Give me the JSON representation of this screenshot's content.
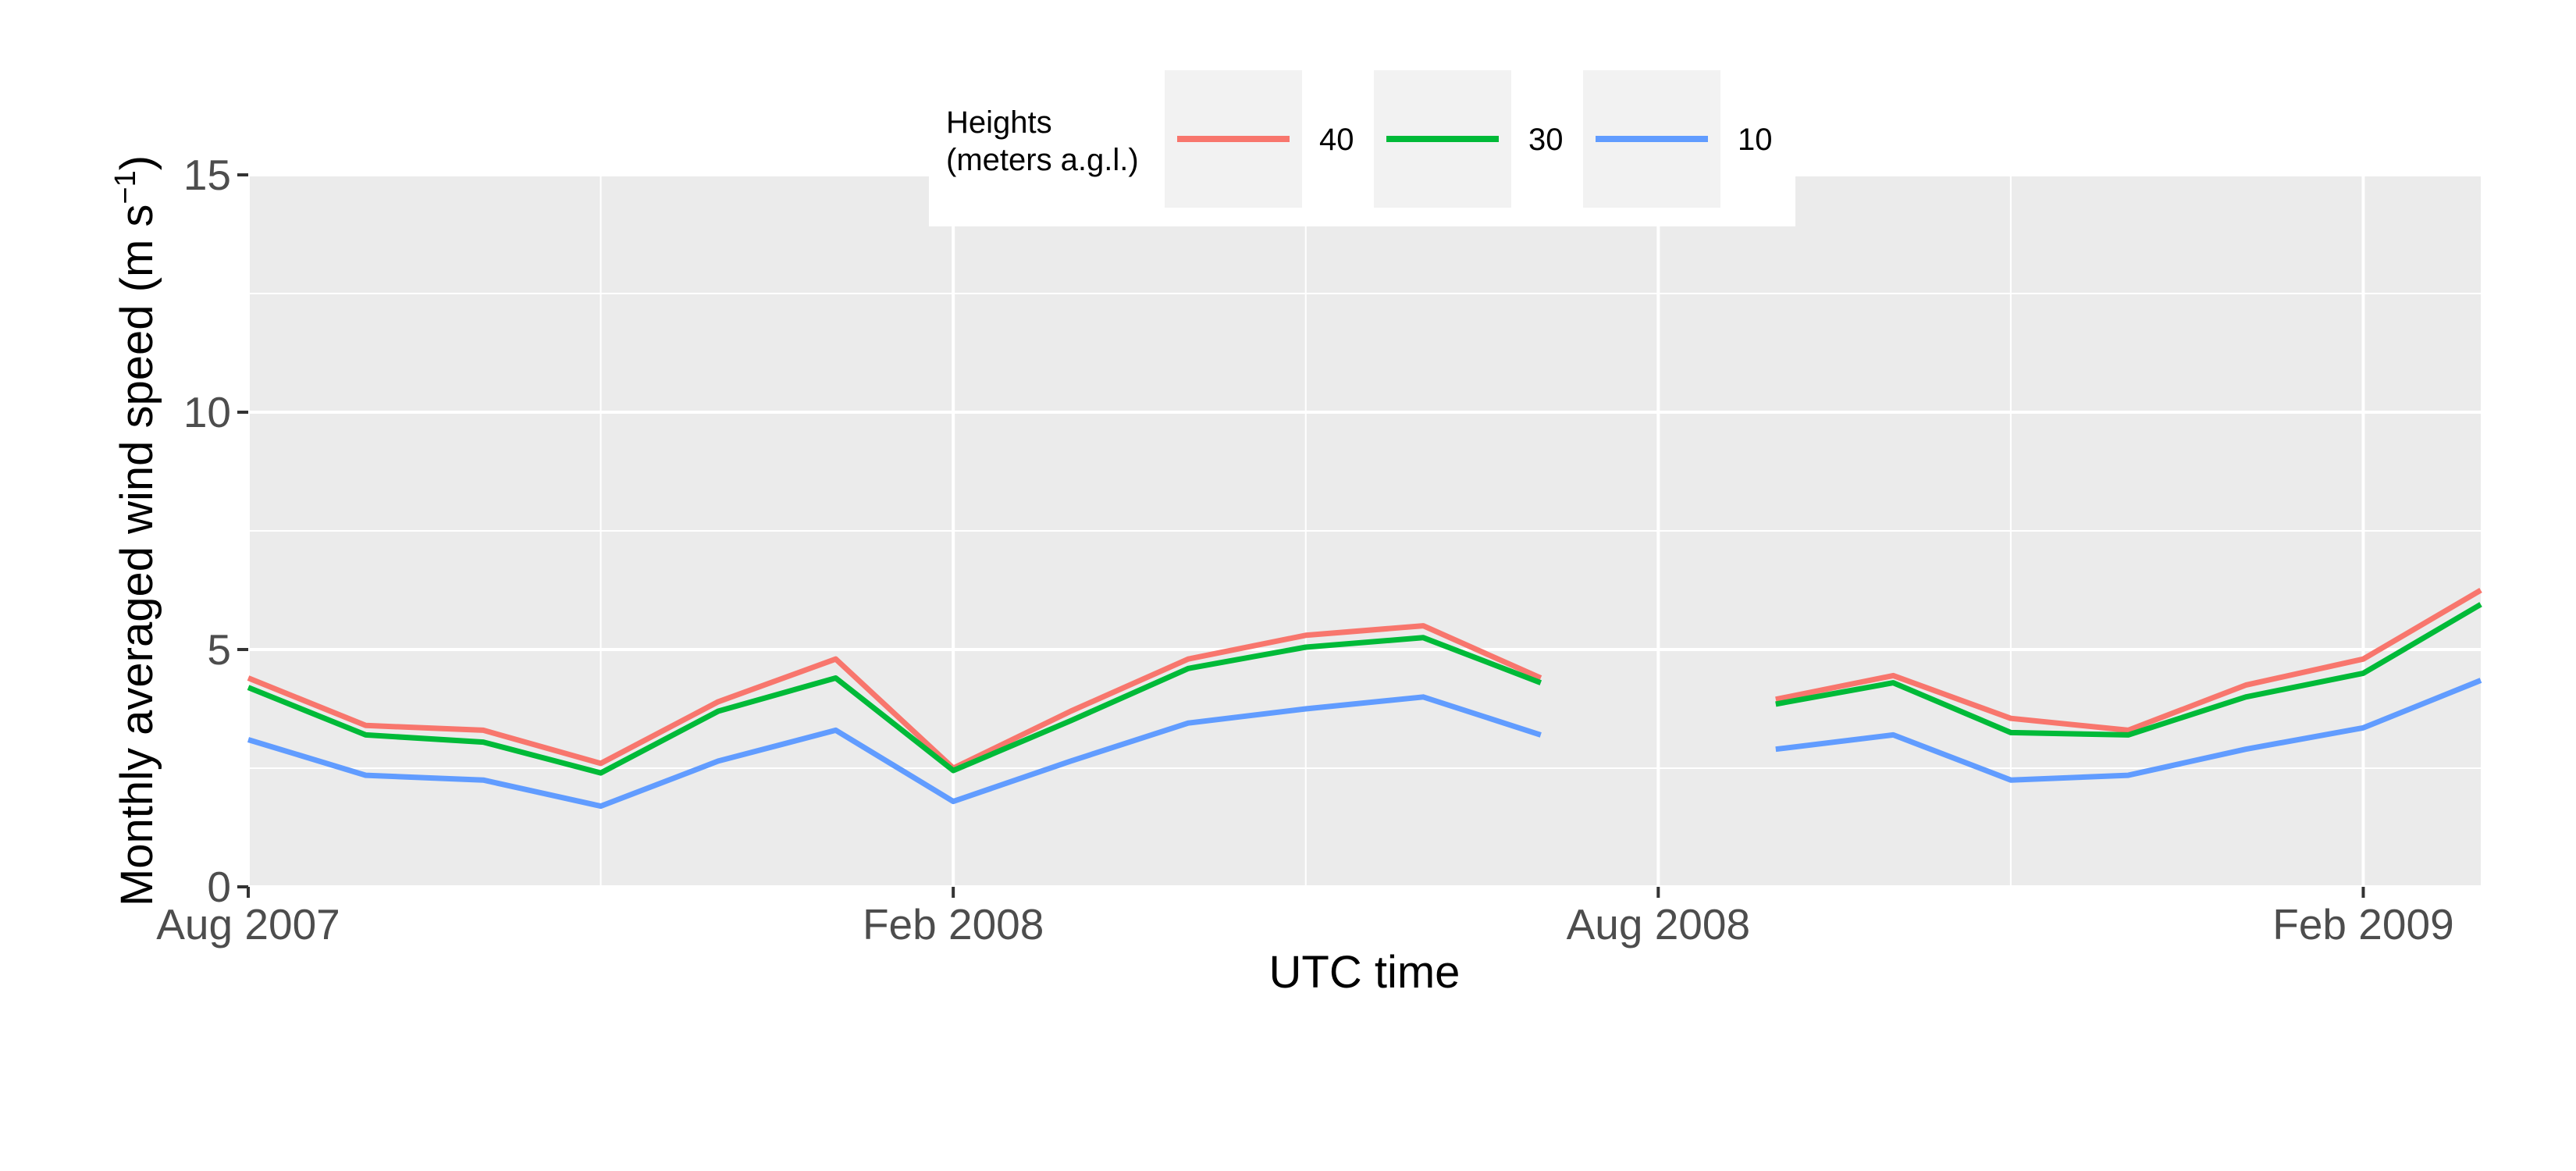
{
  "chart_data": {
    "type": "line",
    "xlabel": "UTC time",
    "ylabel_main": "Monthly averaged wind speed (m s",
    "ylabel_sup": "−1",
    "ylabel_close": ")",
    "ylim": [
      0,
      15
    ],
    "yticks": [
      0,
      5,
      10,
      15
    ],
    "xlim": [
      "2007-08",
      "2009-03"
    ],
    "xticks": [
      {
        "x": "2007-08",
        "label": "Aug 2007"
      },
      {
        "x": "2008-02",
        "label": "Feb 2008"
      },
      {
        "x": "2008-08",
        "label": "Aug 2008"
      },
      {
        "x": "2009-02",
        "label": "Feb 2009"
      }
    ],
    "x": [
      "2007-08",
      "2007-09",
      "2007-10",
      "2007-11",
      "2007-12",
      "2008-01",
      "2008-02",
      "2008-03",
      "2008-04",
      "2008-05",
      "2008-06",
      "2008-07",
      "2008-08",
      "2008-09",
      "2008-10",
      "2008-11",
      "2008-12",
      "2009-01",
      "2009-02",
      "2009-03"
    ],
    "grid": true,
    "background": "#ebebeb",
    "legend": {
      "title_line1": "Heights",
      "title_line2": "(meters a.g.l.)",
      "placement": "top-center",
      "key_background": "#f2f2f2"
    },
    "series": [
      {
        "name": "40",
        "color": "#f8766d",
        "values": [
          4.4,
          3.4,
          3.3,
          2.6,
          3.9,
          4.8,
          2.5,
          3.7,
          4.8,
          5.3,
          5.5,
          4.4,
          null,
          3.95,
          4.45,
          3.55,
          3.3,
          4.25,
          4.8,
          6.25
        ]
      },
      {
        "name": "30",
        "color": "#00ba38",
        "values": [
          4.2,
          3.2,
          3.05,
          2.4,
          3.7,
          4.4,
          2.45,
          3.5,
          4.6,
          5.05,
          5.25,
          4.3,
          null,
          3.85,
          4.3,
          3.25,
          3.2,
          4.0,
          4.5,
          5.95
        ]
      },
      {
        "name": "10",
        "color": "#619cff",
        "values": [
          3.1,
          2.35,
          2.25,
          1.7,
          2.65,
          3.3,
          1.8,
          2.65,
          3.45,
          3.75,
          4.0,
          3.2,
          null,
          2.9,
          3.2,
          2.25,
          2.35,
          2.9,
          3.35,
          4.35
        ]
      }
    ]
  }
}
